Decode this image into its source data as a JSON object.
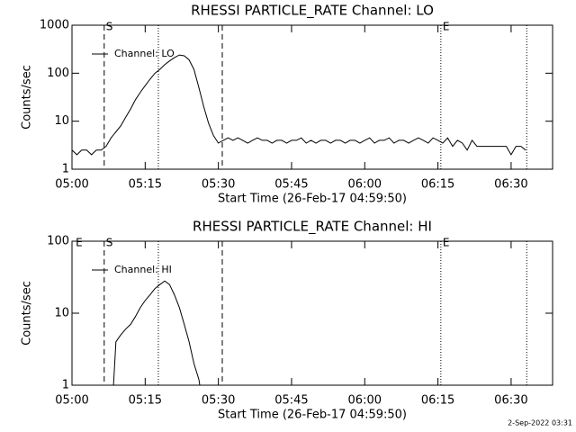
{
  "chart_data": [
    {
      "type": "line",
      "title": "RHESSI PARTICLE_RATE Channel: LO",
      "x_label": "Start Time (26-Feb-17 04:59:50)",
      "y_label": "Counts/sec",
      "log_y": true,
      "xlim": [
        0,
        98.5
      ],
      "ylim": [
        1,
        1000
      ],
      "xticks": [
        {
          "value": 0,
          "label": "05:00"
        },
        {
          "value": 15,
          "label": "05:15"
        },
        {
          "value": 30,
          "label": "05:30"
        },
        {
          "value": 45,
          "label": "05:45"
        },
        {
          "value": 60,
          "label": "06:00"
        },
        {
          "value": 75,
          "label": "06:15"
        },
        {
          "value": 90,
          "label": "06:30"
        }
      ],
      "yticks": [
        1,
        10,
        100,
        1000
      ],
      "markers": [
        {
          "x": 6.6,
          "style": "dashed",
          "label": "S"
        },
        {
          "x": 17.7,
          "style": "dotted"
        },
        {
          "x": 30.8,
          "style": "dashed"
        },
        {
          "x": 75.6,
          "style": "dotted",
          "label": "E"
        },
        {
          "x": 93.2,
          "style": "dotted"
        }
      ],
      "series": [
        {
          "name": "Channel: LO",
          "color": "#000000",
          "x": [
            0,
            1,
            2,
            3,
            4,
            5,
            6,
            7,
            8,
            9,
            10,
            11,
            12,
            13,
            14,
            15,
            16,
            17,
            18,
            19,
            20,
            21,
            22,
            23,
            24,
            25,
            26,
            27,
            28,
            29,
            30,
            31,
            32,
            33,
            34,
            35,
            36,
            37,
            38,
            39,
            40,
            41,
            42,
            43,
            44,
            45,
            46,
            47,
            48,
            49,
            50,
            51,
            52,
            53,
            54,
            55,
            56,
            57,
            58,
            59,
            60,
            61,
            62,
            63,
            64,
            65,
            66,
            67,
            68,
            69,
            70,
            71,
            72,
            73,
            74,
            75,
            76,
            77,
            78,
            79,
            80,
            81,
            82,
            83,
            84,
            85,
            86,
            87,
            88,
            89,
            90,
            91,
            92,
            93
          ],
          "values": [
            2.5,
            2,
            2.5,
            2.5,
            2,
            2.5,
            2.5,
            3,
            4.5,
            6,
            8,
            12,
            18,
            28,
            40,
            55,
            75,
            100,
            120,
            150,
            180,
            210,
            240,
            230,
            190,
            120,
            50,
            20,
            9,
            5,
            3.5,
            4,
            4.5,
            4,
            4.5,
            4,
            3.5,
            4,
            4.5,
            4,
            4,
            3.5,
            4,
            4,
            3.5,
            4,
            4,
            4.5,
            3.5,
            4,
            3.5,
            4,
            4,
            3.5,
            4,
            4,
            3.5,
            4,
            4,
            3.5,
            4,
            4.5,
            3.5,
            4,
            4,
            4.5,
            3.5,
            4,
            4,
            3.5,
            4,
            4.5,
            4,
            3.5,
            4.5,
            4,
            3.5,
            4.5,
            3,
            4,
            3.5,
            2.5,
            4,
            3,
            3,
            3,
            3,
            3,
            3,
            3,
            2,
            3,
            3,
            2.5
          ]
        }
      ]
    },
    {
      "type": "line",
      "title": "RHESSI PARTICLE_RATE Channel: HI",
      "x_label": "Start Time (26-Feb-17 04:59:50)",
      "y_label": "Counts/sec",
      "log_y": true,
      "xlim": [
        0,
        98.5
      ],
      "ylim": [
        1,
        100
      ],
      "xticks": [
        {
          "value": 0,
          "label": "05:00"
        },
        {
          "value": 15,
          "label": "05:15"
        },
        {
          "value": 30,
          "label": "05:30"
        },
        {
          "value": 45,
          "label": "05:45"
        },
        {
          "value": 60,
          "label": "06:00"
        },
        {
          "value": 75,
          "label": "06:15"
        },
        {
          "value": 90,
          "label": "06:30"
        }
      ],
      "yticks": [
        1,
        10,
        100
      ],
      "markers": [
        {
          "x": 0.4,
          "label": "E"
        },
        {
          "x": 6.6,
          "style": "dashed",
          "label": "S"
        },
        {
          "x": 17.7,
          "style": "dotted"
        },
        {
          "x": 30.8,
          "style": "dashed"
        },
        {
          "x": 75.6,
          "style": "dotted",
          "label": "E"
        },
        {
          "x": 93.2,
          "style": "dotted"
        }
      ],
      "series": [
        {
          "name": "Channel: HI",
          "color": "#000000",
          "x": [
            8.5,
            9,
            10,
            11,
            12,
            13,
            14,
            15,
            16,
            17,
            18,
            19,
            20,
            21,
            22,
            23,
            24,
            25,
            26,
            26.2
          ],
          "values": [
            1,
            4,
            5,
            6,
            7,
            9,
            12,
            15,
            18,
            22,
            25,
            28,
            25,
            18,
            12,
            7,
            4,
            2,
            1.2,
            1
          ]
        }
      ]
    }
  ],
  "footer": "2-Sep-2022 03:31"
}
